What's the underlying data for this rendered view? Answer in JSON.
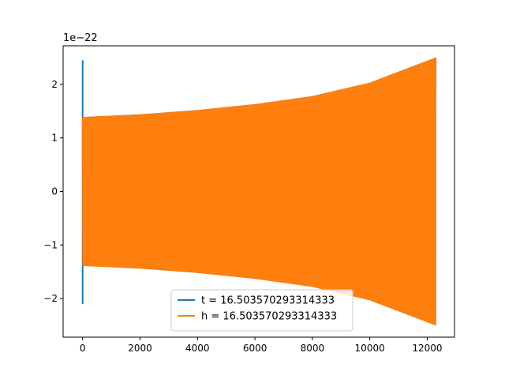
{
  "chart_data": {
    "type": "line",
    "title": "",
    "xlabel": "",
    "ylabel": "",
    "offset_text": "1e−22",
    "xlim": [
      -680,
      12950
    ],
    "ylim": [
      -2.72,
      2.72
    ],
    "xticks": [
      0,
      2000,
      4000,
      6000,
      8000,
      10000,
      12000
    ],
    "xtick_labels": [
      "0",
      "2000",
      "4000",
      "6000",
      "8000",
      "10000",
      "12000"
    ],
    "yticks": [
      -2,
      -1,
      0,
      1,
      2
    ],
    "ytick_labels": [
      "−2",
      "−1",
      "0",
      "1",
      "2"
    ],
    "grid": false,
    "legend_position": "lower center",
    "series": [
      {
        "name": "t = 16.503570293314333",
        "color": "#1f77b4",
        "x_start": 0,
        "x_end": 12300,
        "initial_spike": {
          "x": 0,
          "y_max": 2.45,
          "y_min": -2.1
        },
        "envelope": {
          "x": [
            0,
            2000,
            4000,
            6000,
            8000,
            10000,
            12300
          ],
          "amplitude": [
            1.39,
            1.44,
            1.52,
            1.63,
            1.78,
            2.03,
            2.5
          ]
        },
        "cycles": 600
      },
      {
        "name": "h = 16.503570293314333",
        "color": "#ff7f0e",
        "x_start": 0,
        "x_end": 12300,
        "envelope": {
          "x": [
            0,
            2000,
            4000,
            6000,
            8000,
            10000,
            12300
          ],
          "amplitude": [
            1.39,
            1.44,
            1.52,
            1.63,
            1.78,
            2.03,
            2.5
          ]
        },
        "cycles": 600
      }
    ]
  }
}
